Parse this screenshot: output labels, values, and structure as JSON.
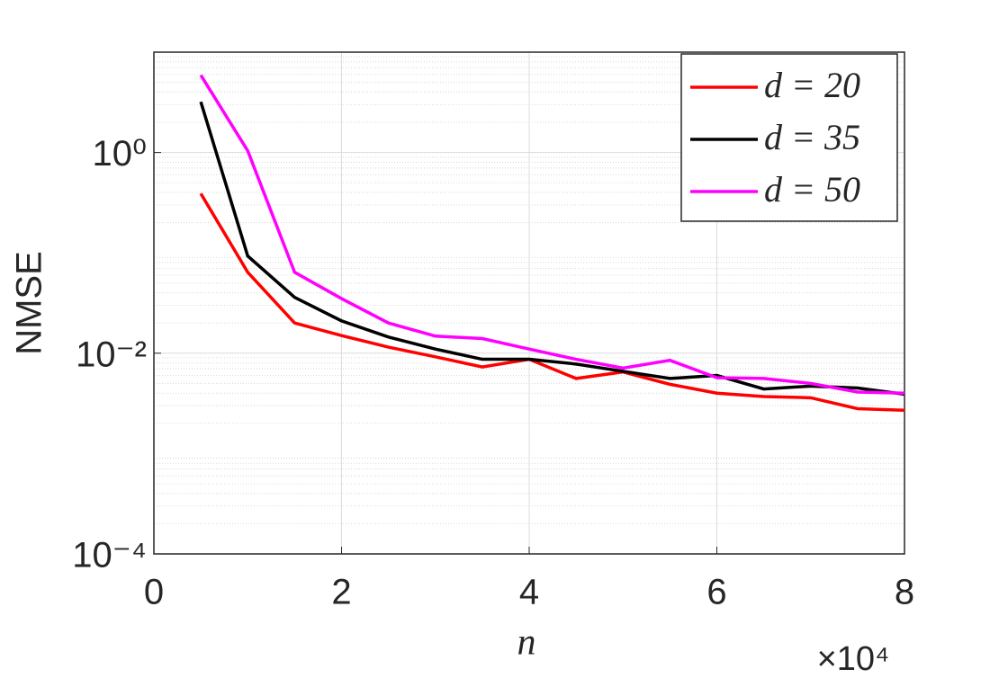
{
  "chart_data": {
    "type": "line",
    "x_label": "n",
    "y_label": "NMSE",
    "x_multiplier": "×10⁴",
    "x": [
      5000,
      10000,
      15000,
      20000,
      25000,
      30000,
      35000,
      40000,
      45000,
      50000,
      55000,
      60000,
      65000,
      70000,
      75000,
      80000
    ],
    "series": [
      {
        "name": "d = 20",
        "color": "#ff0000",
        "values": [
          0.39,
          0.064,
          0.02,
          0.015,
          0.0115,
          0.0092,
          0.0073,
          0.0087,
          0.0056,
          0.0065,
          0.0049,
          0.004,
          0.0037,
          0.0036,
          0.0028,
          0.0027
        ]
      },
      {
        "name": "d = 35",
        "color": "#000000",
        "values": [
          3.2,
          0.093,
          0.036,
          0.021,
          0.0145,
          0.011,
          0.0087,
          0.0087,
          0.0078,
          0.0066,
          0.0056,
          0.006,
          0.0044,
          0.0047,
          0.0045,
          0.0039
        ]
      },
      {
        "name": "d = 50",
        "color": "#ff00ff",
        "values": [
          5.9,
          1.04,
          0.064,
          0.035,
          0.02,
          0.0148,
          0.014,
          0.011,
          0.0087,
          0.0071,
          0.0085,
          0.0057,
          0.0056,
          0.005,
          0.0041,
          0.004
        ]
      }
    ],
    "xlim": [
      0,
      80000
    ],
    "xticks": [
      {
        "value": 0,
        "label": "0"
      },
      {
        "value": 20000,
        "label": "2"
      },
      {
        "value": 40000,
        "label": "4"
      },
      {
        "value": 60000,
        "label": "6"
      },
      {
        "value": 80000,
        "label": "8"
      }
    ],
    "ylim": [
      0.0001,
      10
    ],
    "y_scale": "log",
    "yticks": [
      {
        "value": 0.0001,
        "label": "10⁻⁴"
      },
      {
        "value": 0.01,
        "label": "10⁻²"
      },
      {
        "value": 1,
        "label": "10⁰"
      }
    ],
    "grid": true,
    "minor_grid": true,
    "legend": "top-right"
  }
}
